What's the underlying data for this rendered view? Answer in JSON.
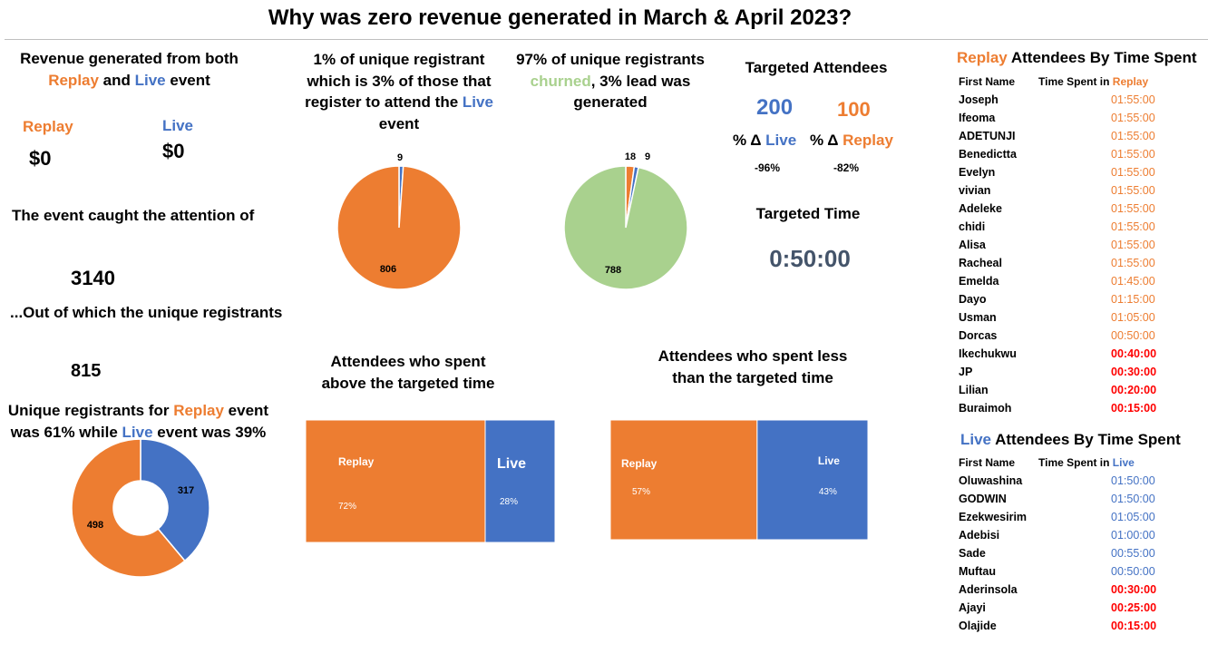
{
  "title": "Why was zero revenue generated in March & April 2023?",
  "colors": {
    "replay": "#ED7D31",
    "live": "#4472C4",
    "churned": "#A9D18E",
    "below_target": "#FF0000"
  },
  "revenue": {
    "heading_part1": "Revenue generated from both",
    "heading_replay": "Replay",
    "heading_and": " and ",
    "heading_live": "Live",
    "heading_event": " event",
    "replay_label": "Replay",
    "replay_value": "$0",
    "live_label": "Live",
    "live_value": "$0"
  },
  "attention": {
    "label": "The event caught the attention of",
    "value": "3140"
  },
  "unique": {
    "label": "...Out of which the unique registrants",
    "value": "815"
  },
  "split": {
    "line1_a": "Unique registrants for ",
    "line1_replay": "Replay",
    "line1_b": " event",
    "line2_a": "was 61% while ",
    "line2_live": "Live",
    "line2_b": " event was 39%"
  },
  "pie1_heading": {
    "line1": "1% of unique registrant",
    "line2": "which is 3% of those that",
    "line3_a": "register to attend the ",
    "line3_live": "Live",
    "line4": "event"
  },
  "pie2_heading": {
    "line1": "97% of unique registrants",
    "line2_churned": "churned",
    "line2_b": ", 3% lead was",
    "line3": "generated"
  },
  "targeted": {
    "attendees_label": "Targeted Attendees",
    "live_target": "200",
    "replay_target": "100",
    "delta_prefix": "% Δ ",
    "delta_live_word": "Live",
    "delta_replay_word": "Replay",
    "live_delta": "-96%",
    "replay_delta": "-82%",
    "time_label": "Targeted Time",
    "time_value": "0:50:00"
  },
  "above_heading": {
    "line1": "Attendees who spent",
    "line2": "above the targeted time"
  },
  "below_heading": {
    "line1": "Attendees who spent less",
    "line2": "than the targeted time"
  },
  "replay_table": {
    "title_replay": "Replay",
    "title_rest": " Attendees By Time Spent",
    "col_name": "First Name",
    "col_time_prefix": "Time Spent in ",
    "col_time_word": "Replay",
    "rows": [
      {
        "name": "Joseph",
        "time": "01:55:00",
        "below": false
      },
      {
        "name": "Ifeoma",
        "time": "01:55:00",
        "below": false
      },
      {
        "name": "ADETUNJI",
        "time": "01:55:00",
        "below": false
      },
      {
        "name": "Benedictta",
        "time": "01:55:00",
        "below": false
      },
      {
        "name": "Evelyn",
        "time": "01:55:00",
        "below": false
      },
      {
        "name": "vivian",
        "time": "01:55:00",
        "below": false
      },
      {
        "name": "Adeleke",
        "time": "01:55:00",
        "below": false
      },
      {
        "name": "chidi",
        "time": "01:55:00",
        "below": false
      },
      {
        "name": "Alisa",
        "time": "01:55:00",
        "below": false
      },
      {
        "name": "Racheal",
        "time": "01:55:00",
        "below": false
      },
      {
        "name": "Emelda",
        "time": "01:45:00",
        "below": false
      },
      {
        "name": "Dayo",
        "time": "01:15:00",
        "below": false
      },
      {
        "name": "Usman",
        "time": "01:05:00",
        "below": false
      },
      {
        "name": "Dorcas",
        "time": "00:50:00",
        "below": false
      },
      {
        "name": "Ikechukwu",
        "time": "00:40:00",
        "below": true
      },
      {
        "name": "JP",
        "time": "00:30:00",
        "below": true
      },
      {
        "name": "Lilian",
        "time": "00:20:00",
        "below": true
      },
      {
        "name": "Buraimoh",
        "time": "00:15:00",
        "below": true
      }
    ]
  },
  "live_table": {
    "title_live": "Live",
    "title_rest": " Attendees By Time Spent",
    "col_name": "First Name",
    "col_time_prefix": "Time Spent in ",
    "col_time_word": "Live",
    "rows": [
      {
        "name": "Oluwashina",
        "time": "01:50:00",
        "below": false
      },
      {
        "name": "GODWIN",
        "time": "01:50:00",
        "below": false
      },
      {
        "name": "Ezekwesirim",
        "time": "01:05:00",
        "below": false
      },
      {
        "name": "Adebisi",
        "time": "01:00:00",
        "below": false
      },
      {
        "name": "Sade",
        "time": "00:55:00",
        "below": false
      },
      {
        "name": "Muftau",
        "time": "00:50:00",
        "below": false
      },
      {
        "name": "Aderinsola",
        "time": "00:30:00",
        "below": true
      },
      {
        "name": "Ajayi",
        "time": "00:25:00",
        "below": true
      },
      {
        "name": "Olajide",
        "time": "00:15:00",
        "below": true
      }
    ]
  },
  "chart_data": [
    {
      "type": "pie",
      "id": "pie1",
      "slices": [
        {
          "value": 806,
          "label": "806",
          "color": "#ED7D31"
        },
        {
          "value": 9,
          "label": "9",
          "color": "#4472C4"
        }
      ]
    },
    {
      "type": "pie",
      "id": "pie2",
      "slices": [
        {
          "value": 788,
          "label": "788",
          "color": "#A9D18E"
        },
        {
          "value": 18,
          "label": "18",
          "color": "#ED7D31"
        },
        {
          "value": 9,
          "label": "9",
          "color": "#4472C4"
        }
      ]
    },
    {
      "type": "donut",
      "id": "donut",
      "slices": [
        {
          "value": 317,
          "label": "317",
          "color": "#4472C4"
        },
        {
          "value": 498,
          "label": "498",
          "color": "#ED7D31"
        }
      ]
    },
    {
      "type": "treemap",
      "id": "above",
      "items": [
        {
          "name": "Replay",
          "value": 72,
          "label": "72%",
          "color": "#ED7D31"
        },
        {
          "name": "Live",
          "value": 28,
          "label": "28%",
          "color": "#4472C4"
        }
      ]
    },
    {
      "type": "treemap",
      "id": "below",
      "items": [
        {
          "name": "Replay",
          "value": 57,
          "label": "57%",
          "color": "#ED7D31"
        },
        {
          "name": "Live",
          "value": 43,
          "label": "43%",
          "color": "#4472C4"
        }
      ]
    }
  ]
}
